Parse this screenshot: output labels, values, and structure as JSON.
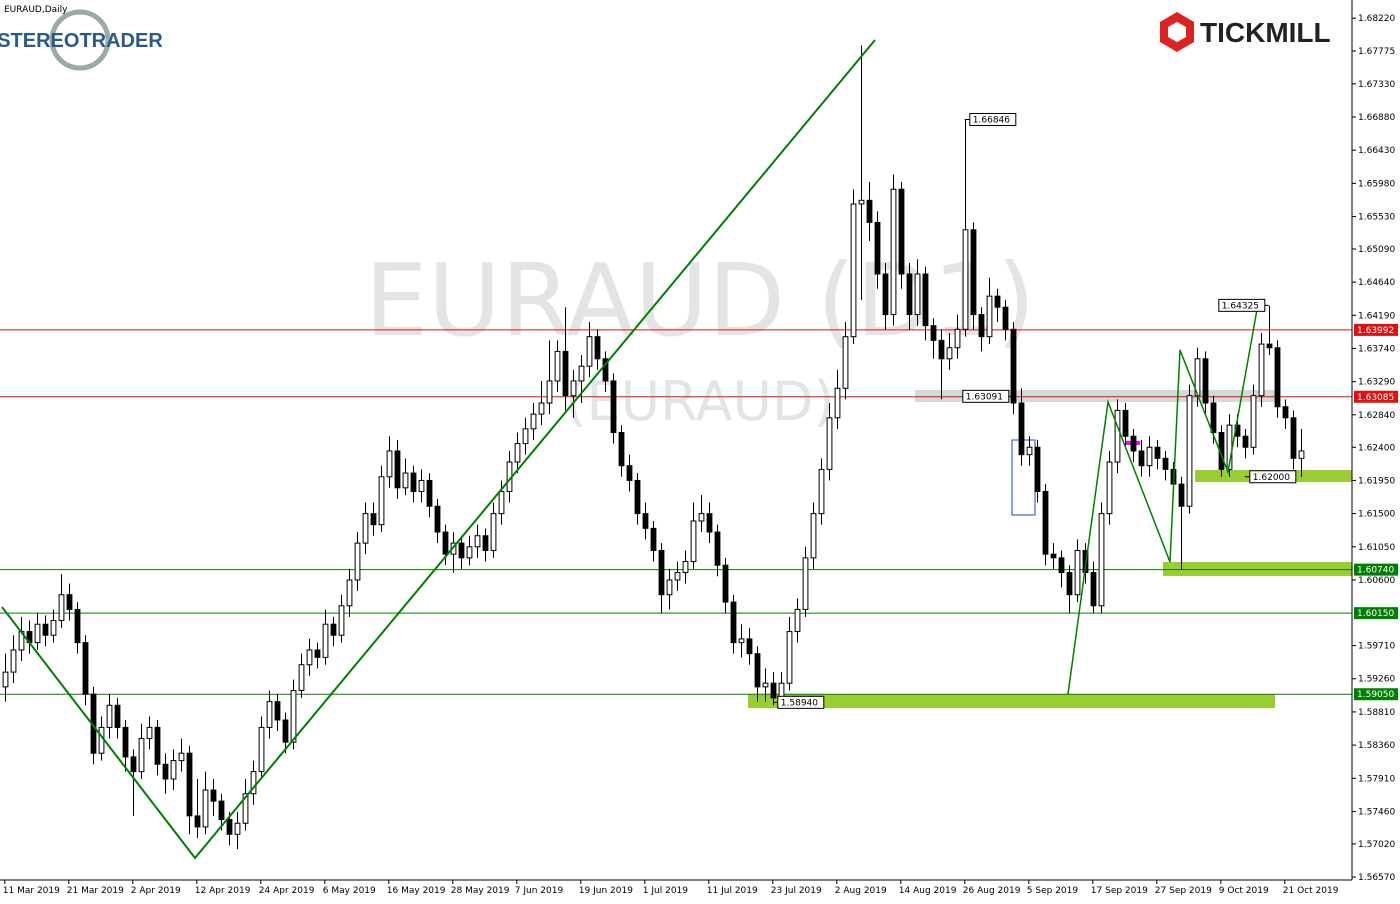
{
  "chart_data": {
    "type": "candlestick",
    "title": "EURAUD,Daily",
    "watermark": "EURAUD (D1)",
    "watermark_sub": "(EURAUD)",
    "logo_left": "STEREOTRADER",
    "logo_right": "TICKMILL",
    "up_color": "#ffffff",
    "down_color": "#000000",
    "xlim": [
      -0.6,
      168.4
    ],
    "ylim": [
      1.5653,
      1.6844
    ],
    "xticks": [
      {
        "value": 0,
        "label": "11 Mar 2019"
      },
      {
        "value": 8,
        "label": "21 Mar 2019"
      },
      {
        "value": 16,
        "label": "2 Apr 2019"
      },
      {
        "value": 24,
        "label": "12 Apr 2019"
      },
      {
        "value": 32,
        "label": "24 Apr 2019"
      },
      {
        "value": 40,
        "label": "6 May 2019"
      },
      {
        "value": 48,
        "label": "16 May 2019"
      },
      {
        "value": 56,
        "label": "28 May 2019"
      },
      {
        "value": 64,
        "label": "7 Jun 2019"
      },
      {
        "value": 72,
        "label": "19 Jun 2019"
      },
      {
        "value": 80,
        "label": "1 Jul 2019"
      },
      {
        "value": 88,
        "label": "11 Jul 2019"
      },
      {
        "value": 96,
        "label": "23 Jul 2019"
      },
      {
        "value": 104,
        "label": "2 Aug 2019"
      },
      {
        "value": 112,
        "label": "14 Aug 2019"
      },
      {
        "value": 120,
        "label": "26 Aug 2019"
      },
      {
        "value": 128,
        "label": "5 Sep 2019"
      },
      {
        "value": 136,
        "label": "17 Sep 2019"
      },
      {
        "value": 144,
        "label": "27 Sep 2019"
      },
      {
        "value": 152,
        "label": "9 Oct 2019"
      },
      {
        "value": 160,
        "label": "21 Oct 2019"
      }
    ],
    "yticks": [
      {
        "value": 1.6822,
        "label": "1.68220"
      },
      {
        "value": 1.67775,
        "label": "1.67775"
      },
      {
        "value": 1.6733,
        "label": "1.67330"
      },
      {
        "value": 1.6688,
        "label": "1.66880"
      },
      {
        "value": 1.6643,
        "label": "1.66430"
      },
      {
        "value": 1.6598,
        "label": "1.65980"
      },
      {
        "value": 1.6553,
        "label": "1.65530"
      },
      {
        "value": 1.6509,
        "label": "1.65090"
      },
      {
        "value": 1.6464,
        "label": "1.64640"
      },
      {
        "value": 1.6419,
        "label": "1.64190"
      },
      {
        "value": 1.6374,
        "label": "1.63740"
      },
      {
        "value": 1.6329,
        "label": "1.63290"
      },
      {
        "value": 1.6284,
        "label": "1.62840"
      },
      {
        "value": 1.624,
        "label": "1.62400"
      },
      {
        "value": 1.6195,
        "label": "1.61950"
      },
      {
        "value": 1.615,
        "label": "1.61500"
      },
      {
        "value": 1.6105,
        "label": "1.61050"
      },
      {
        "value": 1.606,
        "label": "1.60600"
      },
      {
        "value": 1.5971,
        "label": "1.59710"
      },
      {
        "value": 1.5926,
        "label": "1.59260"
      },
      {
        "value": 1.5881,
        "label": "1.58810"
      },
      {
        "value": 1.5836,
        "label": "1.58360"
      },
      {
        "value": 1.5791,
        "label": "1.57910"
      },
      {
        "value": 1.5746,
        "label": "1.57460"
      },
      {
        "value": 1.5702,
        "label": "1.57020"
      },
      {
        "value": 1.5657,
        "label": "1.56570"
      }
    ],
    "levels": [
      {
        "value": 1.63992,
        "label": "1.63992",
        "color": "#e01010"
      },
      {
        "value": 1.63085,
        "label": "1.63085",
        "color": "#e01010"
      },
      {
        "value": 1.6074,
        "label": "1.60740",
        "color": "#008000"
      },
      {
        "value": 1.6015,
        "label": "1.60150",
        "color": "#008000"
      },
      {
        "value": 1.5905,
        "label": "1.59050",
        "color": "#008000"
      }
    ],
    "annotations": [
      {
        "x": 120,
        "value": 1.66846,
        "label": "1.66846"
      },
      {
        "x": 126,
        "value": 1.63091,
        "label": "1.63091"
      },
      {
        "x": 158,
        "value": 1.64325,
        "label": "1.64325"
      },
      {
        "x": 155,
        "value": 1.62,
        "label": "1.62000"
      },
      {
        "x": 96,
        "value": 1.5894,
        "label": "1.58940"
      }
    ],
    "ohlc": [
      [
        1.5915,
        1.596,
        1.5895,
        1.5935
      ],
      [
        1.5935,
        1.5985,
        1.592,
        1.5965
      ],
      [
        1.5965,
        1.601,
        1.595,
        1.599
      ],
      [
        1.599,
        1.6005,
        1.596,
        1.5975
      ],
      [
        1.5975,
        1.6015,
        1.5965,
        1.6
      ],
      [
        1.6,
        1.6012,
        1.597,
        1.5985
      ],
      [
        1.5985,
        1.602,
        1.5975,
        1.6005
      ],
      [
        1.6005,
        1.6068,
        1.5995,
        1.604
      ],
      [
        1.604,
        1.6055,
        1.6005,
        1.602
      ],
      [
        1.602,
        1.603,
        1.596,
        1.5975
      ],
      [
        1.5975,
        1.5985,
        1.589,
        1.5905
      ],
      [
        1.5905,
        1.5915,
        1.581,
        1.5825
      ],
      [
        1.5825,
        1.5875,
        1.5815,
        1.586
      ],
      [
        1.586,
        1.5905,
        1.5845,
        1.589
      ],
      [
        1.589,
        1.59,
        1.5845,
        1.586
      ],
      [
        1.586,
        1.587,
        1.58,
        1.582
      ],
      [
        1.582,
        1.583,
        1.574,
        1.58
      ],
      [
        1.58,
        1.5865,
        1.579,
        1.5845
      ],
      [
        1.5845,
        1.5875,
        1.583,
        1.586
      ],
      [
        1.586,
        1.587,
        1.5795,
        1.581
      ],
      [
        1.581,
        1.5825,
        1.577,
        1.579
      ],
      [
        1.579,
        1.583,
        1.5775,
        1.5815
      ],
      [
        1.5815,
        1.5845,
        1.58,
        1.5825
      ],
      [
        1.5825,
        1.5835,
        1.5715,
        1.574
      ],
      [
        1.574,
        1.579,
        1.571,
        1.5725
      ],
      [
        1.5725,
        1.58,
        1.5715,
        1.5775
      ],
      [
        1.5775,
        1.579,
        1.574,
        1.576
      ],
      [
        1.576,
        1.577,
        1.572,
        1.5735
      ],
      [
        1.5735,
        1.5745,
        1.57,
        1.5715
      ],
      [
        1.5715,
        1.5745,
        1.5695,
        1.573
      ],
      [
        1.573,
        1.579,
        1.572,
        1.577
      ],
      [
        1.577,
        1.5815,
        1.5755,
        1.58
      ],
      [
        1.58,
        1.5875,
        1.579,
        1.586
      ],
      [
        1.586,
        1.591,
        1.5845,
        1.5895
      ],
      [
        1.5895,
        1.5905,
        1.5855,
        1.587
      ],
      [
        1.587,
        1.588,
        1.5825,
        1.584
      ],
      [
        1.584,
        1.5925,
        1.583,
        1.591
      ],
      [
        1.591,
        1.596,
        1.59,
        1.5945
      ],
      [
        1.5945,
        1.598,
        1.593,
        1.5965
      ],
      [
        1.5965,
        1.5975,
        1.594,
        1.5955
      ],
      [
        1.5955,
        1.602,
        1.5945,
        1.6
      ],
      [
        1.6,
        1.601,
        1.597,
        1.5985
      ],
      [
        1.5985,
        1.604,
        1.5975,
        1.6025
      ],
      [
        1.6025,
        1.6075,
        1.601,
        1.606
      ],
      [
        1.606,
        1.6125,
        1.6045,
        1.611
      ],
      [
        1.611,
        1.6165,
        1.6095,
        1.615
      ],
      [
        1.615,
        1.6165,
        1.612,
        1.6135
      ],
      [
        1.6135,
        1.6215,
        1.6125,
        1.62
      ],
      [
        1.62,
        1.6255,
        1.6185,
        1.6235
      ],
      [
        1.6235,
        1.625,
        1.617,
        1.6185
      ],
      [
        1.6185,
        1.6225,
        1.6175,
        1.6205
      ],
      [
        1.6205,
        1.6215,
        1.6165,
        1.618
      ],
      [
        1.618,
        1.621,
        1.6165,
        1.6195
      ],
      [
        1.6195,
        1.6205,
        1.6145,
        1.616
      ],
      [
        1.616,
        1.617,
        1.611,
        1.6125
      ],
      [
        1.6125,
        1.6135,
        1.608,
        1.6095
      ],
      [
        1.6095,
        1.6125,
        1.607,
        1.611
      ],
      [
        1.611,
        1.612,
        1.6075,
        1.609
      ],
      [
        1.609,
        1.612,
        1.608,
        1.6105
      ],
      [
        1.6105,
        1.6135,
        1.609,
        1.612
      ],
      [
        1.612,
        1.613,
        1.6085,
        1.61
      ],
      [
        1.61,
        1.6165,
        1.609,
        1.615
      ],
      [
        1.615,
        1.6195,
        1.6135,
        1.618
      ],
      [
        1.618,
        1.6235,
        1.6165,
        1.622
      ],
      [
        1.622,
        1.626,
        1.6205,
        1.6245
      ],
      [
        1.6245,
        1.628,
        1.623,
        1.6265
      ],
      [
        1.6265,
        1.63,
        1.625,
        1.6285
      ],
      [
        1.6285,
        1.633,
        1.627,
        1.63
      ],
      [
        1.63,
        1.6385,
        1.6285,
        1.633
      ],
      [
        1.633,
        1.6385,
        1.6315,
        1.637
      ],
      [
        1.637,
        1.643,
        1.629,
        1.631
      ],
      [
        1.631,
        1.6345,
        1.628,
        1.633
      ],
      [
        1.633,
        1.6365,
        1.63,
        1.635
      ],
      [
        1.635,
        1.641,
        1.6335,
        1.639
      ],
      [
        1.639,
        1.64,
        1.6345,
        1.636
      ],
      [
        1.636,
        1.637,
        1.6315,
        1.633
      ],
      [
        1.633,
        1.634,
        1.6245,
        1.626
      ],
      [
        1.626,
        1.627,
        1.62,
        1.6215
      ],
      [
        1.6215,
        1.623,
        1.618,
        1.6195
      ],
      [
        1.6195,
        1.6205,
        1.6135,
        1.615
      ],
      [
        1.615,
        1.6165,
        1.6115,
        1.613
      ],
      [
        1.613,
        1.614,
        1.6085,
        1.61
      ],
      [
        1.61,
        1.611,
        1.6015,
        1.604
      ],
      [
        1.604,
        1.6075,
        1.602,
        1.606
      ],
      [
        1.606,
        1.6085,
        1.6045,
        1.607
      ],
      [
        1.607,
        1.61,
        1.6055,
        1.6085
      ],
      [
        1.6085,
        1.6165,
        1.6075,
        1.614
      ],
      [
        1.614,
        1.6175,
        1.6125,
        1.615
      ],
      [
        1.615,
        1.6165,
        1.611,
        1.6125
      ],
      [
        1.6125,
        1.6135,
        1.6065,
        1.608
      ],
      [
        1.608,
        1.609,
        1.6015,
        1.603
      ],
      [
        1.603,
        1.604,
        1.596,
        1.5975
      ],
      [
        1.5975,
        1.6,
        1.5955,
        1.598
      ],
      [
        1.598,
        1.5995,
        1.5945,
        1.596
      ],
      [
        1.596,
        1.597,
        1.5895,
        1.5915
      ],
      [
        1.5915,
        1.594,
        1.5895,
        1.592
      ],
      [
        1.592,
        1.5935,
        1.589,
        1.59
      ],
      [
        1.59,
        1.5935,
        1.5892,
        1.592
      ],
      [
        1.592,
        1.601,
        1.591,
        1.599
      ],
      [
        1.599,
        1.6035,
        1.5975,
        1.602
      ],
      [
        1.602,
        1.6105,
        1.601,
        1.609
      ],
      [
        1.609,
        1.6165,
        1.6075,
        1.615
      ],
      [
        1.615,
        1.6225,
        1.6135,
        1.621
      ],
      [
        1.621,
        1.63,
        1.6195,
        1.628
      ],
      [
        1.628,
        1.6345,
        1.6265,
        1.632
      ],
      [
        1.632,
        1.641,
        1.6305,
        1.639
      ],
      [
        1.639,
        1.659,
        1.638,
        1.657
      ],
      [
        1.657,
        1.6785,
        1.644,
        1.6575
      ],
      [
        1.6575,
        1.66,
        1.652,
        1.6545
      ],
      [
        1.6545,
        1.656,
        1.6455,
        1.6475
      ],
      [
        1.6475,
        1.649,
        1.64,
        1.642
      ],
      [
        1.642,
        1.661,
        1.6405,
        1.659
      ],
      [
        1.659,
        1.66,
        1.6455,
        1.6475
      ],
      [
        1.6475,
        1.649,
        1.64,
        1.642
      ],
      [
        1.642,
        1.6495,
        1.6405,
        1.6475
      ],
      [
        1.6475,
        1.6485,
        1.6385,
        1.6405
      ],
      [
        1.6405,
        1.6415,
        1.636,
        1.6385
      ],
      [
        1.6385,
        1.64,
        1.6305,
        1.636
      ],
      [
        1.636,
        1.6395,
        1.6345,
        1.6375
      ],
      [
        1.6375,
        1.642,
        1.636,
        1.64
      ],
      [
        1.64,
        1.6685,
        1.639,
        1.6535
      ],
      [
        1.6535,
        1.6545,
        1.64,
        1.642
      ],
      [
        1.642,
        1.643,
        1.637,
        1.639
      ],
      [
        1.639,
        1.647,
        1.638,
        1.6445
      ],
      [
        1.6445,
        1.6455,
        1.641,
        1.643
      ],
      [
        1.643,
        1.644,
        1.6385,
        1.64
      ],
      [
        1.64,
        1.641,
        1.6285,
        1.63
      ],
      [
        1.63,
        1.632,
        1.6215,
        1.623
      ],
      [
        1.623,
        1.6255,
        1.6215,
        1.624
      ],
      [
        1.624,
        1.625,
        1.6165,
        1.618
      ],
      [
        1.618,
        1.619,
        1.608,
        1.6095
      ],
      [
        1.6095,
        1.611,
        1.6075,
        1.609
      ],
      [
        1.609,
        1.61,
        1.605,
        1.607
      ],
      [
        1.607,
        1.608,
        1.6015,
        1.604
      ],
      [
        1.604,
        1.6115,
        1.603,
        1.61
      ],
      [
        1.61,
        1.611,
        1.6055,
        1.607
      ],
      [
        1.607,
        1.6085,
        1.6015,
        1.6025
      ],
      [
        1.6025,
        1.6165,
        1.6015,
        1.615
      ],
      [
        1.615,
        1.6235,
        1.6135,
        1.622
      ],
      [
        1.622,
        1.6305,
        1.6205,
        1.629
      ],
      [
        1.629,
        1.63,
        1.624,
        1.6255
      ],
      [
        1.6255,
        1.6265,
        1.622,
        1.6235
      ],
      [
        1.6235,
        1.625,
        1.62,
        1.6215
      ],
      [
        1.6215,
        1.6255,
        1.62,
        1.624
      ],
      [
        1.624,
        1.625,
        1.621,
        1.6225
      ],
      [
        1.6225,
        1.6235,
        1.6195,
        1.621
      ],
      [
        1.621,
        1.622,
        1.6175,
        1.619
      ],
      [
        1.619,
        1.62,
        1.6074,
        1.616
      ],
      [
        1.616,
        1.6325,
        1.615,
        1.631
      ],
      [
        1.631,
        1.6375,
        1.6295,
        1.636
      ],
      [
        1.636,
        1.637,
        1.6285,
        1.63
      ],
      [
        1.63,
        1.631,
        1.6245,
        1.626
      ],
      [
        1.626,
        1.627,
        1.62,
        1.621
      ],
      [
        1.621,
        1.6285,
        1.62,
        1.627
      ],
      [
        1.627,
        1.6285,
        1.624,
        1.6255
      ],
      [
        1.6255,
        1.6265,
        1.6225,
        1.624
      ],
      [
        1.624,
        1.6325,
        1.623,
        1.631
      ],
      [
        1.631,
        1.6395,
        1.6295,
        1.638
      ],
      [
        1.638,
        1.6432,
        1.6365,
        1.6375
      ],
      [
        1.6375,
        1.6385,
        1.628,
        1.6295
      ],
      [
        1.6295,
        1.6305,
        1.6265,
        1.628
      ],
      [
        1.628,
        1.629,
        1.621,
        1.6225
      ],
      [
        1.6225,
        1.6265,
        1.62,
        1.6235
      ]
    ]
  }
}
